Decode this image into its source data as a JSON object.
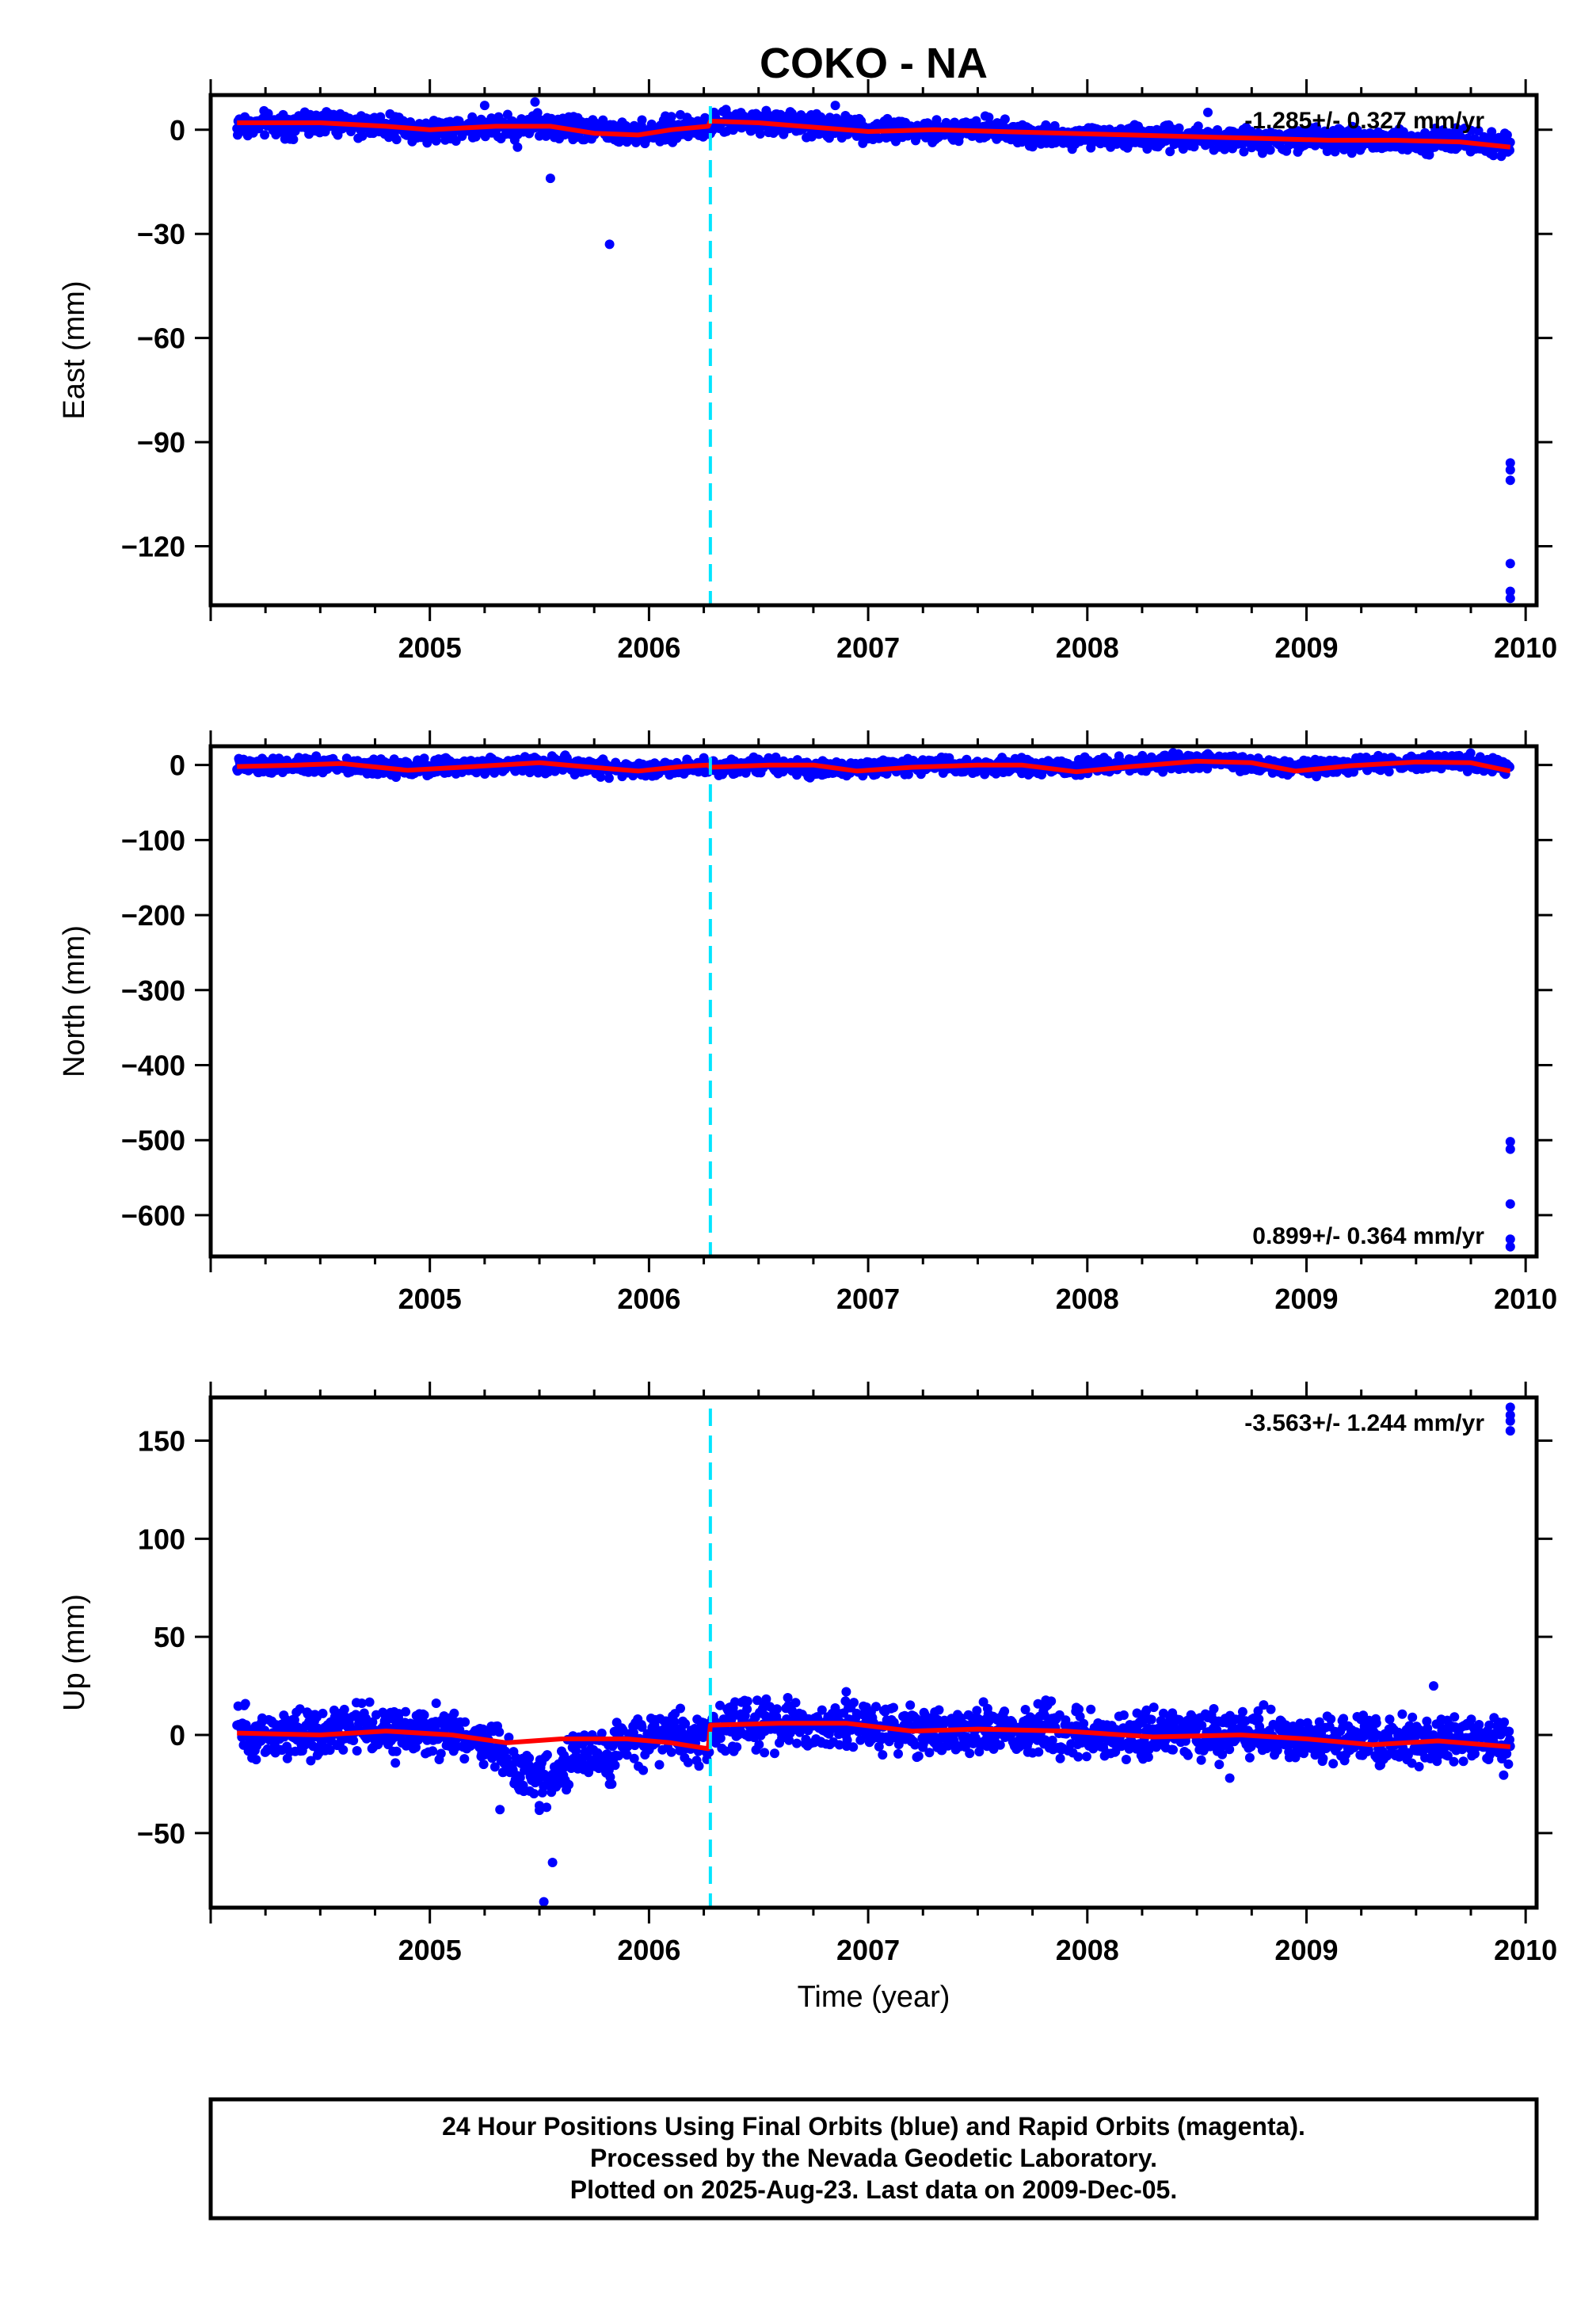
{
  "title": "COKO - NA",
  "xlabel": "Time (year)",
  "footer": {
    "lines": [
      "24 Hour Positions Using Final Orbits (blue) and Rapid Orbits (magenta).",
      "Processed by the Nevada Geodetic Laboratory.",
      "Plotted on 2025-Aug-23. Last data on 2009-Dec-05."
    ]
  },
  "colors": {
    "points": "#0000ff",
    "trend": "#ff0000",
    "event_line": "#00e5ff",
    "frame": "#000000"
  },
  "chart_data": [
    {
      "type": "scatter",
      "component": "east",
      "ylabel": "East (mm)",
      "rate_text": "-1.285+/- 0.327 mm/yr",
      "xlim": [
        2004.0,
        2010.05
      ],
      "ylim": [
        -137,
        10
      ],
      "xticks": [
        2005,
        2006,
        2007,
        2008,
        2009,
        2010
      ],
      "yticks": [
        0,
        -30,
        -60,
        -90,
        -120
      ],
      "ytick_labels": [
        "0",
        "−30",
        "−60",
        "−90",
        "−120"
      ],
      "event_x": 2006.28,
      "time_range": [
        2004.12,
        2009.93
      ],
      "band": {
        "spread": 1.6,
        "points": [
          [
            2004.12,
            1
          ],
          [
            2004.5,
            2
          ],
          [
            2004.8,
            1
          ],
          [
            2005.0,
            0
          ],
          [
            2005.3,
            1
          ],
          [
            2005.6,
            1
          ],
          [
            2005.9,
            -1
          ],
          [
            2006.27,
            1
          ],
          [
            2006.3,
            2
          ],
          [
            2006.6,
            2
          ],
          [
            2007.0,
            0
          ],
          [
            2007.5,
            0
          ],
          [
            2008.0,
            -2
          ],
          [
            2008.5,
            -2
          ],
          [
            2009.0,
            -3
          ],
          [
            2009.5,
            -3
          ],
          [
            2009.9,
            -4
          ]
        ]
      },
      "trend": [
        [
          2004.12,
          2
        ],
        [
          2004.5,
          2
        ],
        [
          2004.8,
          1
        ],
        [
          2005.0,
          0
        ],
        [
          2005.3,
          1
        ],
        [
          2005.55,
          1
        ],
        [
          2005.75,
          -1
        ],
        [
          2005.95,
          -1.5
        ],
        [
          2006.1,
          0
        ],
        [
          2006.27,
          1
        ],
        [
          2006.28,
          2.5
        ],
        [
          2006.5,
          2
        ],
        [
          2006.8,
          0.5
        ],
        [
          2007.0,
          -0.5
        ],
        [
          2007.3,
          0
        ],
        [
          2007.6,
          -0.5
        ],
        [
          2007.9,
          -1
        ],
        [
          2008.2,
          -1.5
        ],
        [
          2008.5,
          -2
        ],
        [
          2008.8,
          -2.5
        ],
        [
          2009.1,
          -3
        ],
        [
          2009.4,
          -3
        ],
        [
          2009.7,
          -3.5
        ],
        [
          2009.93,
          -5
        ]
      ],
      "outliers": [
        [
          2005.25,
          7
        ],
        [
          2005.4,
          -5
        ],
        [
          2005.48,
          8
        ],
        [
          2005.55,
          -14
        ],
        [
          2005.82,
          -33
        ],
        [
          2006.85,
          7
        ],
        [
          2008.55,
          5
        ],
        [
          2009.93,
          -96
        ],
        [
          2009.93,
          -98
        ],
        [
          2009.93,
          -101
        ],
        [
          2009.93,
          -125
        ],
        [
          2009.93,
          -133
        ],
        [
          2009.93,
          -135
        ]
      ]
    },
    {
      "type": "scatter",
      "component": "north",
      "ylabel": "North (mm)",
      "rate_text": "0.899+/- 0.364 mm/yr",
      "xlim": [
        2004.0,
        2010.05
      ],
      "ylim": [
        -655,
        25
      ],
      "xticks": [
        2005,
        2006,
        2007,
        2008,
        2009,
        2010
      ],
      "yticks": [
        0,
        -100,
        -200,
        -300,
        -400,
        -500,
        -600
      ],
      "ytick_labels": [
        "0",
        "−100",
        "−200",
        "−300",
        "−400",
        "−500",
        "−600"
      ],
      "event_x": 2006.28,
      "time_range": [
        2004.12,
        2009.93
      ],
      "band": {
        "spread": 5,
        "points": [
          [
            2004.12,
            -2
          ],
          [
            2004.6,
            0
          ],
          [
            2004.9,
            -5
          ],
          [
            2005.3,
            0
          ],
          [
            2005.6,
            0
          ],
          [
            2005.9,
            -5
          ],
          [
            2006.27,
            -2
          ],
          [
            2006.5,
            0
          ],
          [
            2006.9,
            -5
          ],
          [
            2007.3,
            0
          ],
          [
            2007.9,
            -5
          ],
          [
            2008.3,
            3
          ],
          [
            2008.6,
            5
          ],
          [
            2009.0,
            -5
          ],
          [
            2009.4,
            3
          ],
          [
            2009.7,
            4
          ],
          [
            2009.93,
            -5
          ]
        ]
      },
      "trend": [
        [
          2004.12,
          -2
        ],
        [
          2004.4,
          0
        ],
        [
          2004.6,
          2
        ],
        [
          2004.9,
          -7
        ],
        [
          2005.2,
          -2
        ],
        [
          2005.5,
          3
        ],
        [
          2005.7,
          -2
        ],
        [
          2005.95,
          -8
        ],
        [
          2006.15,
          -2
        ],
        [
          2006.27,
          0
        ],
        [
          2006.28,
          -3
        ],
        [
          2006.55,
          0
        ],
        [
          2006.75,
          0
        ],
        [
          2006.95,
          -8
        ],
        [
          2007.2,
          -3
        ],
        [
          2007.5,
          0
        ],
        [
          2007.7,
          0
        ],
        [
          2007.95,
          -9
        ],
        [
          2008.2,
          -2
        ],
        [
          2008.5,
          5
        ],
        [
          2008.75,
          3
        ],
        [
          2008.95,
          -8
        ],
        [
          2009.2,
          -1
        ],
        [
          2009.5,
          4
        ],
        [
          2009.75,
          3
        ],
        [
          2009.93,
          -8
        ]
      ],
      "outliers": [
        [
          2006.55,
          8
        ],
        [
          2007.7,
          10
        ],
        [
          2008.5,
          12
        ],
        [
          2008.55,
          15
        ],
        [
          2009.6,
          12
        ],
        [
          2009.93,
          -502
        ],
        [
          2009.93,
          -512
        ],
        [
          2009.93,
          -585
        ],
        [
          2009.93,
          -632
        ],
        [
          2009.93,
          -642
        ]
      ]
    },
    {
      "type": "scatter",
      "component": "up",
      "ylabel": "Up (mm)",
      "rate_text": "-3.563+/- 1.244 mm/yr",
      "xlim": [
        2004.0,
        2010.05
      ],
      "ylim": [
        -88,
        172
      ],
      "xticks": [
        2005,
        2006,
        2007,
        2008,
        2009,
        2010
      ],
      "yticks": [
        150,
        100,
        50,
        0,
        -50
      ],
      "ytick_labels": [
        "150",
        "100",
        "50",
        "0",
        "−50"
      ],
      "event_x": 2006.28,
      "time_range": [
        2004.12,
        2009.93
      ],
      "band": {
        "spread": 6,
        "points": [
          [
            2004.12,
            0
          ],
          [
            2004.4,
            1
          ],
          [
            2004.7,
            3
          ],
          [
            2004.95,
            1
          ],
          [
            2005.2,
            0
          ],
          [
            2005.32,
            -8
          ],
          [
            2005.4,
            -18
          ],
          [
            2005.5,
            -22
          ],
          [
            2005.6,
            -18
          ],
          [
            2005.68,
            -8
          ],
          [
            2005.8,
            -12
          ],
          [
            2005.9,
            -3
          ],
          [
            2006.1,
            0
          ],
          [
            2006.27,
            -2
          ],
          [
            2006.3,
            4
          ],
          [
            2006.6,
            6
          ],
          [
            2006.9,
            5
          ],
          [
            2007.2,
            2
          ],
          [
            2007.5,
            3
          ],
          [
            2007.9,
            2
          ],
          [
            2008.2,
            -1
          ],
          [
            2008.5,
            0
          ],
          [
            2008.8,
            -1
          ],
          [
            2009.1,
            -3
          ],
          [
            2009.4,
            -4
          ],
          [
            2009.7,
            -2
          ],
          [
            2009.93,
            -5
          ]
        ]
      },
      "trend": [
        [
          2004.12,
          1
        ],
        [
          2004.5,
          0
        ],
        [
          2004.8,
          2
        ],
        [
          2005.1,
          0
        ],
        [
          2005.35,
          -4
        ],
        [
          2005.6,
          -2
        ],
        [
          2005.9,
          -2
        ],
        [
          2006.1,
          -4
        ],
        [
          2006.27,
          -7
        ],
        [
          2006.28,
          5
        ],
        [
          2006.6,
          6
        ],
        [
          2006.9,
          6
        ],
        [
          2007.2,
          2
        ],
        [
          2007.5,
          3
        ],
        [
          2007.9,
          2
        ],
        [
          2008.3,
          -1
        ],
        [
          2008.7,
          0
        ],
        [
          2009.0,
          -2
        ],
        [
          2009.3,
          -5
        ],
        [
          2009.6,
          -3
        ],
        [
          2009.93,
          -6
        ]
      ],
      "outliers": [
        [
          2005.32,
          -38
        ],
        [
          2005.5,
          -36
        ],
        [
          2005.52,
          -85
        ],
        [
          2005.56,
          -65
        ],
        [
          2005.83,
          -25
        ],
        [
          2006.9,
          22
        ],
        [
          2007.95,
          14
        ],
        [
          2008.65,
          -22
        ],
        [
          2009.58,
          25
        ],
        [
          2009.93,
          155
        ],
        [
          2009.93,
          160
        ],
        [
          2009.93,
          163
        ],
        [
          2009.93,
          167
        ]
      ]
    }
  ]
}
